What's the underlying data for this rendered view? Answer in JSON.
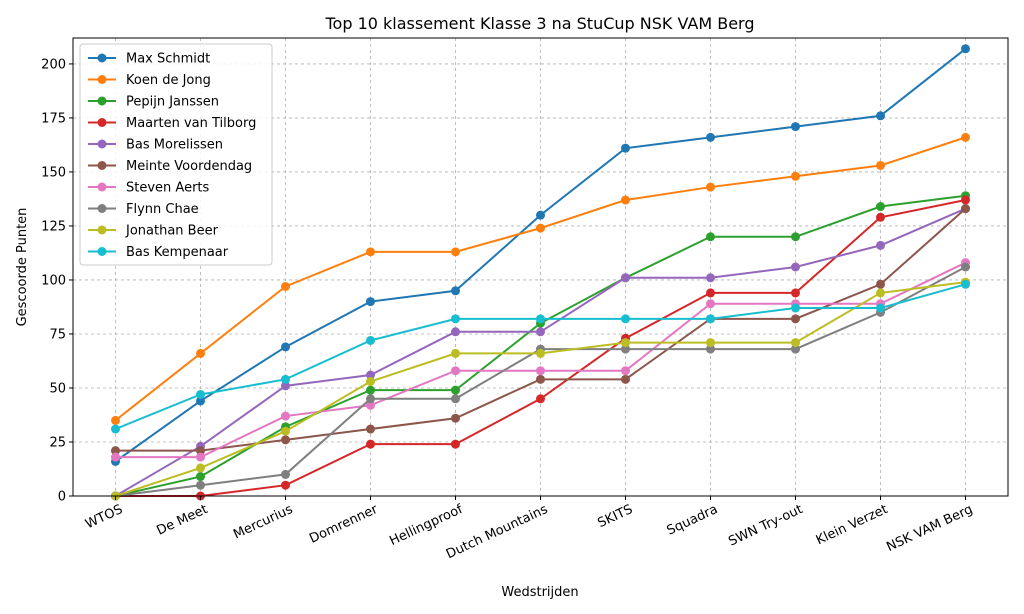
{
  "chart_data": {
    "type": "line",
    "title": "Top 10 klassement Klasse 3 na StuCup NSK VAM Berg",
    "xlabel": "Wedstrijden",
    "ylabel": "Gescoorde Punten",
    "categories": [
      "WTOS",
      "De Meet",
      "Mercurius",
      "Domrenner",
      "Hellingproof",
      "Dutch Mountains",
      "SKITS",
      "Squadra",
      "SWN Try-out",
      "Klein Verzet",
      "NSK VAM Berg"
    ],
    "ylim": [
      0,
      212
    ],
    "yticks": [
      0,
      25,
      50,
      75,
      100,
      125,
      150,
      175,
      200
    ],
    "grid": true,
    "legend": "top-left",
    "series": [
      {
        "name": "Max Schmidt",
        "color": "#1f77b4",
        "values": [
          16,
          44,
          69,
          90,
          95,
          130,
          161,
          166,
          171,
          176,
          207
        ]
      },
      {
        "name": "Koen de Jong",
        "color": "#ff7f0e",
        "values": [
          35,
          66,
          97,
          113,
          113,
          124,
          137,
          143,
          148,
          153,
          166
        ]
      },
      {
        "name": "Pepijn Janssen",
        "color": "#2ca02c",
        "values": [
          0,
          9,
          32,
          49,
          49,
          80,
          101,
          120,
          120,
          134,
          139
        ]
      },
      {
        "name": "Maarten van Tilborg",
        "color": "#d62728",
        "values": [
          0,
          0,
          5,
          24,
          24,
          45,
          73,
          94,
          94,
          129,
          137
        ]
      },
      {
        "name": "Bas Morelissen",
        "color": "#9467bd",
        "values": [
          0,
          23,
          51,
          56,
          76,
          76,
          101,
          101,
          106,
          116,
          133
        ]
      },
      {
        "name": "Meinte Voordendag",
        "color": "#8c564b",
        "values": [
          21,
          21,
          26,
          31,
          36,
          54,
          54,
          82,
          82,
          98,
          133
        ]
      },
      {
        "name": "Steven Aerts",
        "color": "#e377c2",
        "values": [
          18,
          18,
          37,
          42,
          58,
          58,
          58,
          89,
          89,
          89,
          108
        ]
      },
      {
        "name": "Flynn Chae",
        "color": "#7f7f7f",
        "values": [
          0,
          5,
          10,
          45,
          45,
          68,
          68,
          68,
          68,
          85,
          106
        ]
      },
      {
        "name": "Jonathan Beer",
        "color": "#bcbd22",
        "values": [
          0,
          13,
          30,
          53,
          66,
          66,
          71,
          71,
          71,
          94,
          99
        ]
      },
      {
        "name": "Bas Kempenaar",
        "color": "#17becf",
        "values": [
          31,
          47,
          54,
          72,
          82,
          82,
          82,
          82,
          87,
          87,
          98
        ]
      }
    ]
  }
}
